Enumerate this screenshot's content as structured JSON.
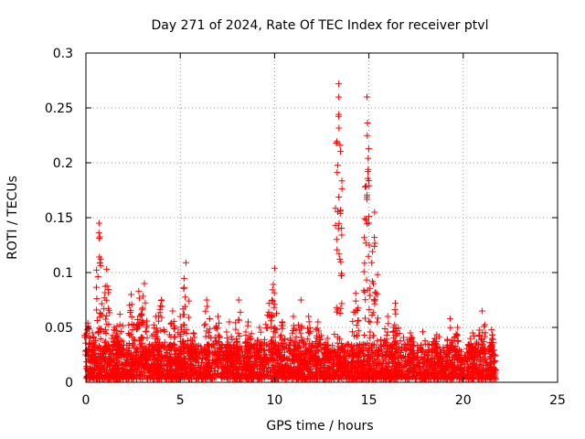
{
  "chart_data": {
    "type": "scatter",
    "title": "Day 271 of 2024, Rate Of TEC Index for receiver ptvl",
    "xlabel": "GPS time / hours",
    "ylabel": "ROTI / TECUs",
    "xlim": [
      0,
      25
    ],
    "ylim": [
      0,
      0.3
    ],
    "xticks": [
      0,
      5,
      10,
      15,
      20,
      25
    ],
    "xtick_labels": [
      "0",
      "5",
      "10",
      "15",
      "20",
      "25"
    ],
    "yticks": [
      0,
      0.05,
      0.1,
      0.15,
      0.2,
      0.25,
      0.3
    ],
    "ytick_labels": [
      "0",
      "0.05",
      "0.1",
      "0.15",
      "0.2",
      "0.25",
      "0.3"
    ],
    "grid": true,
    "marker": "+",
    "color": "#ff0000",
    "time_range": [
      0,
      21.75
    ],
    "baseline_band": [
      0.003,
      0.035
    ],
    "peaks": [
      {
        "x": 0.1,
        "y": 0.054
      },
      {
        "x": 0.35,
        "y": 0.045
      },
      {
        "x": 0.7,
        "y": 0.145
      },
      {
        "x": 1.1,
        "y": 0.103
      },
      {
        "x": 1.5,
        "y": 0.05
      },
      {
        "x": 1.8,
        "y": 0.062
      },
      {
        "x": 2.4,
        "y": 0.08
      },
      {
        "x": 2.8,
        "y": 0.083
      },
      {
        "x": 3.1,
        "y": 0.09
      },
      {
        "x": 3.7,
        "y": 0.06
      },
      {
        "x": 4.0,
        "y": 0.075
      },
      {
        "x": 4.6,
        "y": 0.065
      },
      {
        "x": 5.0,
        "y": 0.06
      },
      {
        "x": 5.3,
        "y": 0.109
      },
      {
        "x": 5.7,
        "y": 0.045
      },
      {
        "x": 6.4,
        "y": 0.075
      },
      {
        "x": 7.0,
        "y": 0.06
      },
      {
        "x": 7.6,
        "y": 0.055
      },
      {
        "x": 8.1,
        "y": 0.075
      },
      {
        "x": 8.6,
        "y": 0.055
      },
      {
        "x": 9.2,
        "y": 0.05
      },
      {
        "x": 9.7,
        "y": 0.072
      },
      {
        "x": 10.0,
        "y": 0.104
      },
      {
        "x": 10.4,
        "y": 0.055
      },
      {
        "x": 11.0,
        "y": 0.06
      },
      {
        "x": 11.4,
        "y": 0.075
      },
      {
        "x": 11.8,
        "y": 0.06
      },
      {
        "x": 12.3,
        "y": 0.055
      },
      {
        "x": 12.8,
        "y": 0.04
      },
      {
        "x": 13.4,
        "y": 0.272
      },
      {
        "x": 14.3,
        "y": 0.081
      },
      {
        "x": 14.9,
        "y": 0.26
      },
      {
        "x": 15.3,
        "y": 0.155
      },
      {
        "x": 16.0,
        "y": 0.06
      },
      {
        "x": 16.4,
        "y": 0.072
      },
      {
        "x": 17.2,
        "y": 0.045
      },
      {
        "x": 18.5,
        "y": 0.04
      },
      {
        "x": 19.3,
        "y": 0.058
      },
      {
        "x": 19.7,
        "y": 0.05
      },
      {
        "x": 20.5,
        "y": 0.045
      },
      {
        "x": 21.0,
        "y": 0.065
      },
      {
        "x": 21.5,
        "y": 0.048
      }
    ],
    "fill_density": 3400,
    "random_seed": 271
  }
}
